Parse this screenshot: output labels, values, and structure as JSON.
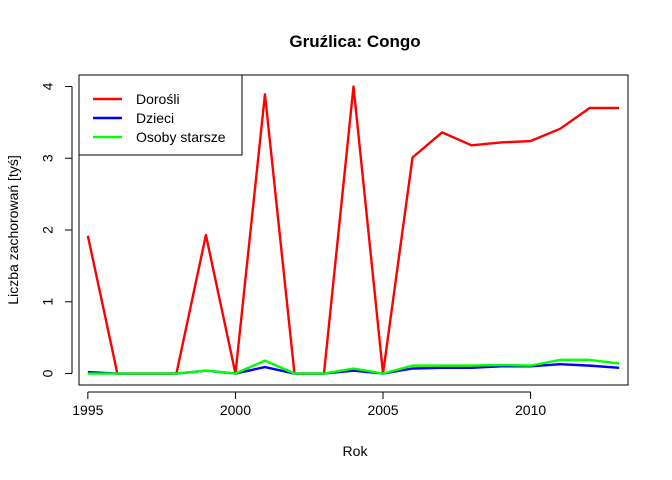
{
  "chart_data": {
    "type": "line",
    "title": "Gruźlica: Congo",
    "xlabel": "Rok",
    "ylabel": "Liczba zachorowań [tyś]",
    "xlim": [
      1994.7,
      2013.3
    ],
    "ylim": [
      -0.16,
      4.16
    ],
    "xticks": [
      1995,
      2000,
      2005,
      2010
    ],
    "yticks": [
      0,
      1,
      2,
      3,
      4
    ],
    "grid": false,
    "legend_position": "top-left",
    "x": [
      1995,
      1996,
      1997,
      1998,
      1999,
      2000,
      2001,
      2002,
      2003,
      2004,
      2005,
      2006,
      2007,
      2008,
      2009,
      2010,
      2011,
      2012,
      2013
    ],
    "series": [
      {
        "name": "Dorośli",
        "color": "#ff0000",
        "values": [
          1.92,
          0.0,
          0.0,
          0.0,
          1.93,
          0.0,
          3.89,
          0.0,
          0.0,
          4.0,
          0.0,
          3.01,
          3.36,
          3.18,
          3.22,
          3.24,
          3.41,
          3.7,
          3.7
        ]
      },
      {
        "name": "Dzieci",
        "color": "#0000ff",
        "values": [
          0.02,
          0.0,
          0.0,
          0.0,
          0.04,
          0.0,
          0.09,
          0.0,
          0.0,
          0.04,
          0.0,
          0.07,
          0.08,
          0.08,
          0.1,
          0.1,
          0.13,
          0.11,
          0.08
        ]
      },
      {
        "name": "Osoby starsze",
        "color": "#00ff00",
        "values": [
          0.0,
          0.0,
          0.0,
          0.0,
          0.04,
          0.0,
          0.18,
          0.0,
          0.0,
          0.07,
          0.0,
          0.11,
          0.11,
          0.11,
          0.12,
          0.11,
          0.19,
          0.19,
          0.14
        ]
      }
    ]
  }
}
